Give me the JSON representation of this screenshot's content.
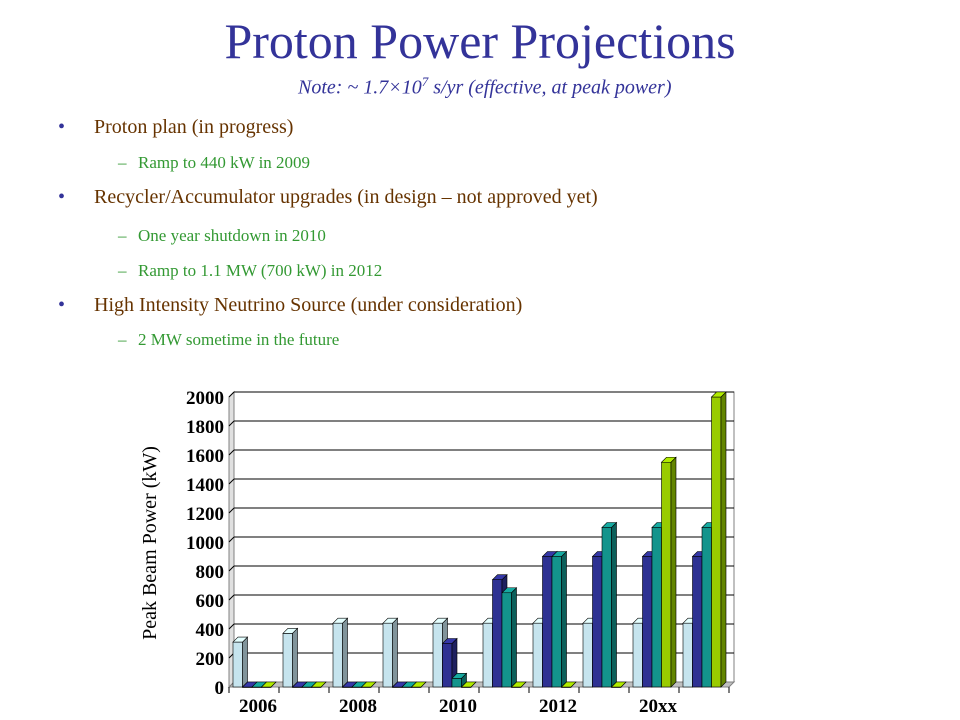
{
  "title": "Proton Power Projections",
  "note": {
    "prefix": "Note: ~ 1.7×10",
    "exponent": "7",
    "suffix": " s/yr  (effective, at peak power)"
  },
  "bullets": [
    {
      "text": "Proton plan (in progress)",
      "subs": [
        "Ramp to 440 kW in 2009"
      ]
    },
    {
      "text": "Recycler/Accumulator upgrades (in design – not approved yet)",
      "subs": [
        "One year shutdown in 2010",
        "Ramp to 1.1 MW (700 kW) in 2012"
      ]
    },
    {
      "text": "High Intensity Neutrino Source (under consideration)",
      "subs": [
        "2 MW sometime in the future"
      ]
    }
  ],
  "bullet_glyph": "•",
  "dash_glyph": "–",
  "chart_data": {
    "type": "bar",
    "ylabel": "Peak Beam Power (kW)",
    "xlabel": "",
    "ylim": [
      0,
      2000
    ],
    "yticks": [
      0,
      200,
      400,
      600,
      800,
      1000,
      1200,
      1400,
      1600,
      1800,
      2000
    ],
    "categories": [
      "2006",
      "",
      "2008",
      "",
      "2010",
      "",
      "2012",
      "",
      "20xx",
      ""
    ],
    "category_ticks_shown": [
      "2006",
      "2008",
      "2010",
      "2012",
      "20xx"
    ],
    "grid": true,
    "legend": "none",
    "series_colors": [
      "#c6e4ee",
      "#2e3192",
      "#13948c",
      "#99cc00"
    ],
    "series": [
      {
        "values": [
          310,
          370,
          440,
          440,
          440,
          440,
          440,
          440,
          440,
          440
        ]
      },
      {
        "values": [
          0,
          0,
          0,
          0,
          300,
          740,
          900,
          900,
          900,
          900
        ]
      },
      {
        "values": [
          0,
          0,
          0,
          0,
          60,
          650,
          900,
          1100,
          1100,
          1100
        ]
      },
      {
        "values": [
          0,
          0,
          0,
          0,
          0,
          0,
          0,
          0,
          1550,
          2000
        ]
      }
    ]
  }
}
